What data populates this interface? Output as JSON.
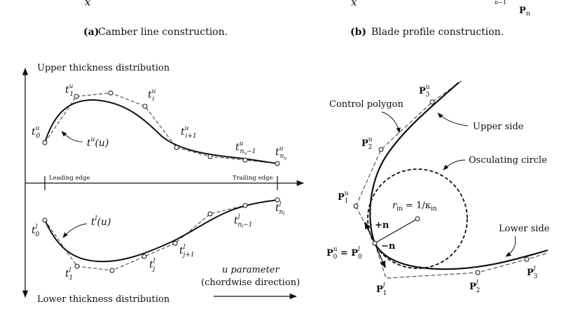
{
  "captions": {
    "a_label": "(a)",
    "a_text": "Camber line construction.",
    "b_label": "(b)",
    "b_text": "Blade profile construction."
  },
  "top_fragments": {
    "x_left": "x",
    "x_right": "x",
    "pn_top": "n−1",
    "pn": "P",
    "pn_sub": "n"
  },
  "left_panel": {
    "upper_title": "Upper thickness distribution",
    "lower_title": "Lower thickness distribution",
    "leading_edge": "Leading edge",
    "trailing_edge": "Trailing edge",
    "u_param_line1": "u parameter",
    "u_param_line2": "(chordwise direction)",
    "upper_labels": {
      "t0": "t",
      "t0_sub": "0",
      "t0_sup": "u",
      "t1": "t",
      "t1_sub": "1",
      "t1_sup": "u",
      "ti": "t",
      "ti_sub": "i",
      "ti_sup": "u",
      "ti1": "t",
      "ti1_sub": "i+1",
      "ti1_sup": "u",
      "tnm1": "t",
      "tnm1_sub": "n",
      "tnm1_sub2": "u",
      "tnm1_sub3": "−1",
      "tnm1_sup": "u",
      "tn": "t",
      "tn_sub": "n",
      "tn_sub2": "u",
      "tn_sup": "u",
      "curve": "t",
      "curve_sup": "u",
      "curve_arg": "(u)"
    },
    "lower_labels": {
      "t0": "t",
      "t0_sub": "0",
      "t0_sup": "l",
      "t1": "t",
      "t1_sub": "1",
      "t1_sup": "l",
      "tj": "t",
      "tj_sub": "j",
      "tj_sup": "l",
      "tj1": "t",
      "tj1_sub": "j+1",
      "tj1_sup": "l",
      "tnm1": "t",
      "tnm1_sub": "n",
      "tnm1_sub2": "l",
      "tnm1_sub3": "−1",
      "tnm1_sup": "l",
      "tn": "t",
      "tn_sub": "n",
      "tn_sub2": "l",
      "tn_sup": "l",
      "curve": "t",
      "curve_sup": "l",
      "curve_arg": "(u)"
    }
  },
  "right_panel": {
    "control_polygon": "Control polygon",
    "upper_side": "Upper side",
    "osculating_circle": "Osculating circle",
    "lower_side": "Lower side",
    "radius_eq": "r",
    "radius_sub": "in",
    "radius_rhs": " = 1/κ",
    "radius_rhs_sub": "in",
    "plus_n": "+n",
    "minus_n": "−n",
    "p0_eq": "P",
    "p0_sub": "0",
    "p0_sup": "u",
    "p0_eq2": " = P",
    "p0_sub2": "0",
    "p0_sup2": "l",
    "upper_points": [
      {
        "sym": "P",
        "sub": "1",
        "sup": "u"
      },
      {
        "sym": "P",
        "sub": "2",
        "sup": "u"
      },
      {
        "sym": "P",
        "sub": "3",
        "sup": "u"
      }
    ],
    "lower_points": [
      {
        "sym": "P",
        "sub": "1",
        "sup": "l"
      },
      {
        "sym": "P",
        "sub": "2",
        "sup": "l"
      },
      {
        "sym": "P",
        "sub": "3",
        "sup": "l"
      }
    ]
  }
}
